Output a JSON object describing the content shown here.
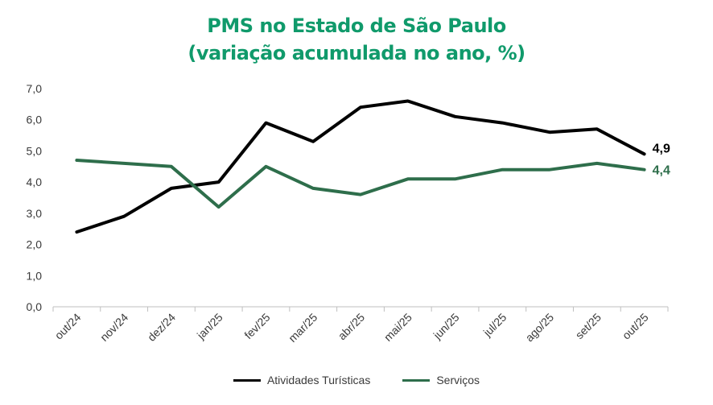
{
  "colors": {
    "title": "#109a6b",
    "series_black": "#000000",
    "series_green": "#2e6e4b",
    "axis": "#bfbfbf"
  },
  "chart_data": {
    "type": "line",
    "title": "PMS no Estado de São Paulo",
    "subtitle": "(variação acumulada no ano, %)",
    "xlabel": "",
    "ylabel": "",
    "ylim": [
      0,
      7
    ],
    "yticks": [
      "0,0",
      "1,0",
      "2,0",
      "3,0",
      "4,0",
      "5,0",
      "6,0",
      "7,0"
    ],
    "categories": [
      "out/24",
      "nov/24",
      "dez/24",
      "jan/25",
      "fev/25",
      "mar/25",
      "abr/25",
      "mai/25",
      "jun/25",
      "jul/25",
      "ago/25",
      "set/25",
      "out/25"
    ],
    "series": [
      {
        "name": "Atividades Turísticas",
        "color": "#000000",
        "values": [
          2.4,
          2.9,
          3.8,
          4.0,
          5.9,
          5.3,
          6.4,
          6.6,
          6.1,
          5.9,
          5.6,
          5.7,
          4.9
        ],
        "end_label": "4,9"
      },
      {
        "name": "Serviços",
        "color": "#2e6e4b",
        "values": [
          4.7,
          4.6,
          4.5,
          3.2,
          4.5,
          3.8,
          3.6,
          4.1,
          4.1,
          4.4,
          4.4,
          4.6,
          4.4
        ],
        "end_label": "4,4"
      }
    ],
    "legend": "bottom",
    "grid": false
  }
}
